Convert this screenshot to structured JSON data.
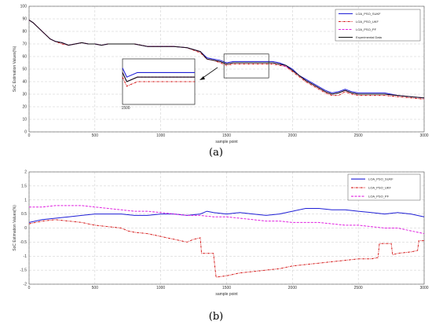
{
  "chart_data": [
    {
      "type": "line",
      "panel": "a",
      "caption": "(a)",
      "xlabel": "sample point",
      "ylabel": "SoC Estimation Values(%)",
      "xlim": [
        0,
        3000
      ],
      "ylim": [
        0,
        100
      ],
      "xticks": [
        "0",
        "500",
        "1000",
        "1500",
        "2000",
        "2500",
        "3000"
      ],
      "yticks": [
        "0",
        "10",
        "20",
        "30",
        "40",
        "50",
        "60",
        "70",
        "80",
        "90",
        "100"
      ],
      "grid": true,
      "legend_position": "top-right",
      "inset_label": "1500",
      "series": [
        {
          "name": "LOA_PSO_SUKF",
          "color": "#1f1fd6",
          "style": "solid",
          "x": [
            0,
            30,
            80,
            120,
            160,
            200,
            250,
            300,
            350,
            400,
            450,
            500,
            550,
            600,
            700,
            800,
            900,
            1000,
            1100,
            1200,
            1300,
            1350,
            1400,
            1450,
            1500,
            1550,
            1600,
            1700,
            1800,
            1850,
            1900,
            1950,
            2000,
            2050,
            2100,
            2150,
            2200,
            2250,
            2300,
            2350,
            2400,
            2450,
            2500,
            2600,
            2700,
            2800,
            2900,
            3000
          ],
          "y": [
            89,
            87,
            82,
            78,
            74,
            72,
            71,
            69,
            70,
            71,
            70,
            70,
            69,
            70,
            70,
            70,
            68,
            68,
            68,
            67,
            64,
            59,
            58,
            57,
            55,
            56,
            56,
            56,
            56,
            56,
            55,
            53,
            50,
            45,
            42,
            39,
            36,
            33,
            31,
            32,
            34,
            32,
            31,
            31,
            31,
            29,
            28,
            27
          ]
        },
        {
          "name": "LOA_PSO_UKF",
          "color": "#d61f1f",
          "style": "dashdot",
          "x": [
            0,
            30,
            80,
            120,
            160,
            200,
            250,
            300,
            350,
            400,
            450,
            500,
            550,
            600,
            700,
            800,
            900,
            1000,
            1100,
            1200,
            1300,
            1350,
            1400,
            1450,
            1500,
            1550,
            1600,
            1700,
            1800,
            1850,
            1900,
            1950,
            2000,
            2050,
            2100,
            2150,
            2200,
            2250,
            2300,
            2350,
            2400,
            2450,
            2500,
            2600,
            2700,
            2800,
            2900,
            3000
          ],
          "y": [
            89,
            87,
            82,
            78,
            74,
            72,
            70,
            69,
            70,
            71,
            70,
            70,
            69,
            70,
            70,
            70,
            68,
            68,
            68,
            67,
            63,
            58,
            57,
            55,
            53,
            54,
            54,
            54,
            54,
            54,
            53,
            52,
            48,
            44,
            40,
            37,
            34,
            31,
            29,
            29,
            32,
            30,
            29,
            29,
            29,
            28,
            27,
            26
          ]
        },
        {
          "name": "LOA_PSO_PF",
          "color": "#e020e0",
          "style": "dashed",
          "x": [
            0,
            30,
            80,
            120,
            160,
            200,
            250,
            300,
            350,
            400,
            450,
            500,
            550,
            600,
            700,
            800,
            900,
            1000,
            1100,
            1200,
            1300,
            1350,
            1400,
            1450,
            1500,
            1550,
            1600,
            1700,
            1800,
            1850,
            1900,
            1950,
            2000,
            2050,
            2100,
            2150,
            2200,
            2250,
            2300,
            2350,
            2400,
            2450,
            2500,
            2600,
            2700,
            2800,
            2900,
            3000
          ],
          "y": [
            89,
            87,
            82,
            78,
            74,
            72,
            71,
            69,
            70,
            71,
            70,
            70,
            69,
            70,
            70,
            70,
            68,
            68,
            68,
            67,
            64,
            58,
            57,
            56,
            54,
            55,
            55,
            55,
            55,
            55,
            54,
            52,
            49,
            45,
            41,
            38,
            35,
            32,
            30,
            31,
            33,
            31,
            30,
            30,
            30,
            29,
            28,
            27
          ]
        },
        {
          "name": "Experimental Data",
          "color": "#111111",
          "style": "solid",
          "x": [
            0,
            30,
            80,
            120,
            160,
            200,
            250,
            300,
            350,
            400,
            450,
            500,
            550,
            600,
            700,
            800,
            900,
            1000,
            1100,
            1200,
            1300,
            1350,
            1400,
            1450,
            1500,
            1550,
            1600,
            1700,
            1800,
            1850,
            1900,
            1950,
            2000,
            2050,
            2100,
            2150,
            2200,
            2250,
            2300,
            2350,
            2400,
            2450,
            2500,
            2600,
            2700,
            2800,
            2900,
            3000
          ],
          "y": [
            89,
            87,
            82,
            78,
            74,
            72,
            71,
            69,
            70,
            71,
            70,
            70,
            69,
            70,
            70,
            70,
            68,
            68,
            68,
            67,
            64,
            58,
            57,
            56,
            54,
            55,
            55,
            55,
            55,
            55,
            54,
            53,
            49,
            45,
            41,
            38,
            35,
            32,
            30,
            31,
            33,
            31,
            30,
            30,
            30,
            29,
            28,
            27
          ]
        }
      ]
    },
    {
      "type": "line",
      "panel": "b",
      "caption": "(b)",
      "xlabel": "sample point",
      "ylabel": "SoC Estimation Values(%)",
      "xlim": [
        0,
        3000
      ],
      "ylim": [
        -2,
        2
      ],
      "xticks": [
        "0",
        "500",
        "1000",
        "1500",
        "2000",
        "2500",
        "3000"
      ],
      "yticks": [
        "-2",
        "-1.5",
        "-1",
        "-0.5",
        "0",
        "0.5",
        "1",
        "1.5",
        "2"
      ],
      "grid": true,
      "legend_position": "top-right",
      "series": [
        {
          "name": "LOA_PSO_SUKF",
          "color": "#1f1fd6",
          "style": "solid",
          "x": [
            0,
            100,
            200,
            300,
            400,
            500,
            600,
            700,
            800,
            900,
            1000,
            1100,
            1200,
            1300,
            1350,
            1400,
            1500,
            1600,
            1700,
            1800,
            1900,
            2000,
            2100,
            2200,
            2300,
            2400,
            2500,
            2600,
            2700,
            2800,
            2900,
            3000
          ],
          "y": [
            0.2,
            0.3,
            0.35,
            0.4,
            0.45,
            0.5,
            0.5,
            0.5,
            0.45,
            0.45,
            0.5,
            0.5,
            0.45,
            0.5,
            0.6,
            0.55,
            0.5,
            0.55,
            0.5,
            0.45,
            0.5,
            0.6,
            0.7,
            0.7,
            0.65,
            0.65,
            0.6,
            0.55,
            0.5,
            0.55,
            0.5,
            0.4
          ]
        },
        {
          "name": "LOA_PSO_UKF",
          "color": "#d61f1f",
          "style": "dashdot",
          "x": [
            0,
            100,
            200,
            300,
            400,
            500,
            600,
            700,
            750,
            800,
            900,
            1000,
            1100,
            1200,
            1250,
            1300,
            1310,
            1400,
            1420,
            1500,
            1600,
            1700,
            1800,
            1900,
            2000,
            2100,
            2200,
            2300,
            2400,
            2500,
            2600,
            2650,
            2660,
            2750,
            2760,
            2800,
            2900,
            2950,
            2960,
            3000
          ],
          "y": [
            0.15,
            0.25,
            0.3,
            0.25,
            0.2,
            0.1,
            0.05,
            0,
            -0.1,
            -0.15,
            -0.2,
            -0.3,
            -0.4,
            -0.5,
            -0.4,
            -0.35,
            -0.9,
            -0.9,
            -1.75,
            -1.7,
            -1.6,
            -1.55,
            -1.5,
            -1.45,
            -1.35,
            -1.3,
            -1.25,
            -1.2,
            -1.15,
            -1.1,
            -1.1,
            -1.05,
            -0.55,
            -0.55,
            -0.95,
            -0.9,
            -0.85,
            -0.8,
            -0.45,
            -0.45
          ]
        },
        {
          "name": "LOA_PSO_PF",
          "color": "#e020e0",
          "style": "dashed",
          "x": [
            0,
            100,
            200,
            300,
            400,
            500,
            600,
            700,
            800,
            900,
            1000,
            1100,
            1200,
            1300,
            1400,
            1500,
            1600,
            1700,
            1800,
            1900,
            2000,
            2100,
            2200,
            2300,
            2400,
            2500,
            2600,
            2700,
            2800,
            2900,
            3000
          ],
          "y": [
            0.75,
            0.75,
            0.8,
            0.8,
            0.8,
            0.75,
            0.7,
            0.65,
            0.6,
            0.6,
            0.55,
            0.5,
            0.45,
            0.45,
            0.4,
            0.4,
            0.35,
            0.3,
            0.25,
            0.25,
            0.2,
            0.2,
            0.2,
            0.15,
            0.1,
            0.1,
            0.05,
            0,
            0,
            -0.1,
            -0.2
          ]
        }
      ]
    }
  ]
}
